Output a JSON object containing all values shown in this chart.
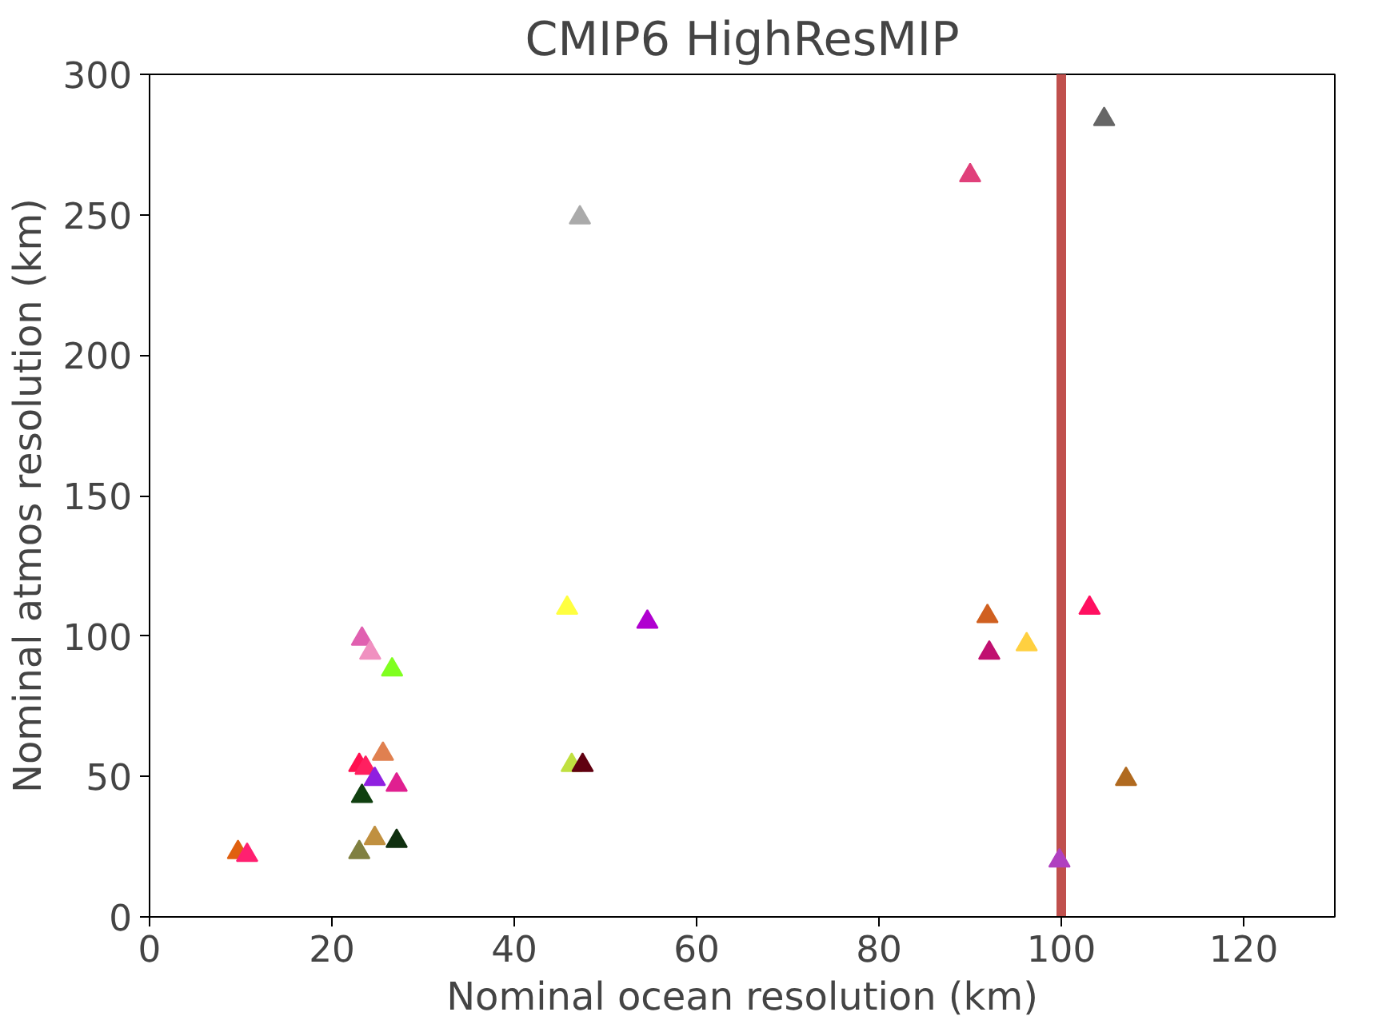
{
  "chart_data": {
    "type": "scatter",
    "title": "CMIP6 HighResMIP",
    "xlabel": "Nominal ocean resolution (km)",
    "ylabel": "Nominal atmos resolution (km)",
    "x": [
      104.7,
      47.2,
      90.0,
      45.8,
      54.6,
      91.9,
      103.1,
      92.1,
      96.2,
      107.1,
      99.8,
      23.3,
      24.2,
      26.6,
      23.0,
      23.7,
      25.6,
      24.7,
      27.1,
      23.3,
      23.0,
      24.7,
      27.1,
      9.7,
      10.7,
      46.3,
      47.5
    ],
    "values": [
      284,
      249,
      264,
      110,
      105,
      107,
      110,
      94,
      97,
      49,
      20,
      99,
      94,
      88,
      54,
      53,
      58,
      49,
      47,
      43,
      23,
      28,
      27,
      23,
      22,
      54,
      54
    ],
    "colors": [
      "#666666",
      "#aaaaaa",
      "#e0407a",
      "#ffff40",
      "#b000d0",
      "#d06020",
      "#ff1060",
      "#c01070",
      "#ffd040",
      "#b06a20",
      "#b040c0",
      "#e060b0",
      "#f090c0",
      "#80ff20",
      "#ff1050",
      "#ff2060",
      "#e08050",
      "#9020e0",
      "#e02090",
      "#104010",
      "#808040",
      "#c09040",
      "#103010",
      "#e06010",
      "#ff2070",
      "#c0e040",
      "#600010"
    ],
    "marker": "triangle",
    "xlim": [
      0,
      130
    ],
    "ylim": [
      0,
      300
    ],
    "xticks": [
      0,
      20,
      40,
      60,
      80,
      100,
      120
    ],
    "yticks": [
      0,
      50,
      100,
      150,
      200,
      250,
      300
    ],
    "ref_lines": [
      {
        "axis": "x",
        "value": 100,
        "color": "#c0504d"
      }
    ]
  }
}
